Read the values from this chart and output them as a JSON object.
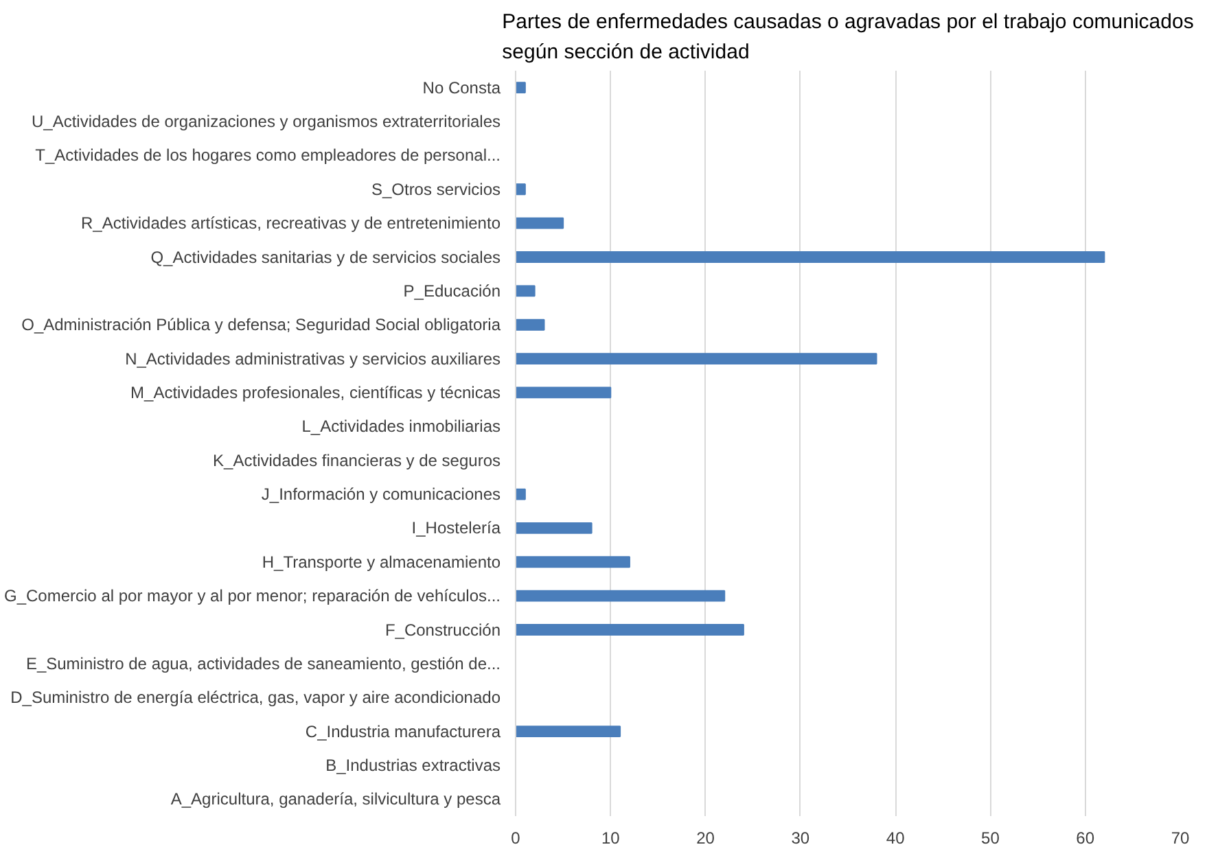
{
  "chart_data": {
    "type": "bar",
    "orientation": "horizontal",
    "title": "Partes de enfermedades causadas o agravadas por el trabajo comunicados\nsegún sección de actividad",
    "categories": [
      "No Consta",
      "U_Actividades de organizaciones y organismos extraterritoriales",
      "T_Actividades de los hogares como empleadores de personal...",
      "S_Otros servicios",
      "R_Actividades artísticas, recreativas y de entretenimiento",
      "Q_Actividades sanitarias y de servicios sociales",
      "P_Educación",
      "O_Administración Pública y defensa; Seguridad Social obligatoria",
      "N_Actividades administrativas y servicios auxiliares",
      "M_Actividades profesionales, científicas y técnicas",
      "L_Actividades inmobiliarias",
      "K_Actividades financieras y de seguros",
      "J_Información y comunicaciones",
      "I_Hostelería",
      "H_Transporte y almacenamiento",
      "G_Comercio al por mayor y al por menor; reparación de vehículos...",
      "F_Construcción",
      "E_Suministro de agua, actividades de saneamiento, gestión de...",
      "D_Suministro de energía eléctrica, gas, vapor y aire acondicionado",
      "C_Industria manufacturera",
      "B_Industrias extractivas",
      "A_Agricultura, ganadería, silvicultura y pesca"
    ],
    "values": [
      1,
      0,
      0,
      1,
      5,
      62,
      2,
      3,
      38,
      10,
      0,
      0,
      1,
      8,
      12,
      22,
      24,
      0,
      0,
      11,
      0,
      0
    ],
    "color": "#4a7ebb",
    "xlim": [
      0,
      70
    ],
    "xticks": [
      0,
      10,
      20,
      30,
      40,
      50,
      60,
      70
    ],
    "grid": "x"
  }
}
